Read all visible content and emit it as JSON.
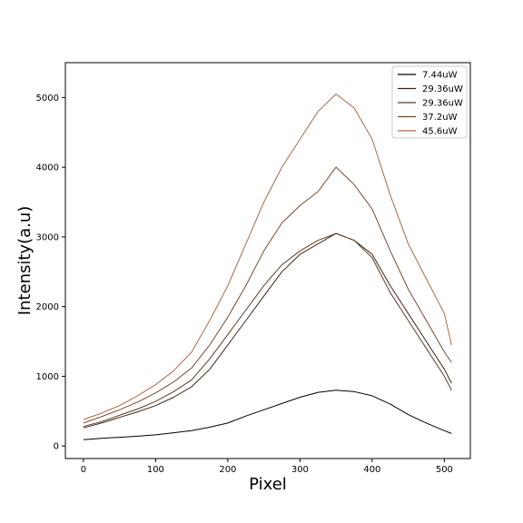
{
  "chart_data": {
    "type": "line",
    "title": "",
    "xlabel": "Pixel",
    "ylabel": "Intensity(a.u)",
    "xlim": [
      -25,
      536
    ],
    "ylim": [
      -180,
      5500
    ],
    "xticks": [
      0,
      100,
      200,
      300,
      400,
      500
    ],
    "yticks": [
      0,
      1000,
      2000,
      3000,
      4000,
      5000
    ],
    "grid": false,
    "legend_position": "top-right",
    "series": [
      {
        "name": "7.44uW",
        "color": "#000000",
        "x": [
          0,
          25,
          50,
          75,
          100,
          125,
          150,
          175,
          200,
          225,
          250,
          275,
          300,
          325,
          350,
          375,
          400,
          425,
          450,
          475,
          500,
          510
        ],
        "y": [
          90,
          110,
          125,
          140,
          160,
          190,
          220,
          270,
          330,
          430,
          520,
          610,
          700,
          770,
          800,
          780,
          720,
          600,
          450,
          330,
          220,
          180
        ]
      },
      {
        "name": "29.36uW",
        "color": "#3f2516",
        "x": [
          0,
          25,
          50,
          75,
          100,
          125,
          150,
          175,
          200,
          225,
          250,
          275,
          300,
          325,
          350,
          375,
          400,
          425,
          450,
          475,
          500,
          510
        ],
        "y": [
          260,
          330,
          410,
          490,
          580,
          700,
          850,
          1100,
          1450,
          1800,
          2150,
          2500,
          2750,
          2900,
          3050,
          2950,
          2750,
          2300,
          1900,
          1500,
          1100,
          900
        ]
      },
      {
        "name": "29.36uW",
        "color": "#5b3a24",
        "x": [
          0,
          25,
          50,
          75,
          100,
          125,
          150,
          175,
          200,
          225,
          250,
          275,
          300,
          325,
          350,
          375,
          400,
          425,
          450,
          475,
          500,
          510
        ],
        "y": [
          280,
          350,
          440,
          530,
          640,
          780,
          950,
          1250,
          1600,
          1950,
          2300,
          2600,
          2800,
          2950,
          3050,
          2950,
          2700,
          2200,
          1800,
          1400,
          1000,
          800
        ]
      },
      {
        "name": "37.2uW",
        "color": "#7a4a2e",
        "x": [
          0,
          25,
          50,
          75,
          100,
          125,
          150,
          175,
          200,
          225,
          250,
          275,
          300,
          325,
          350,
          375,
          400,
          425,
          450,
          475,
          500,
          510
        ],
        "y": [
          330,
          420,
          520,
          630,
          760,
          920,
          1120,
          1450,
          1850,
          2300,
          2800,
          3200,
          3450,
          3650,
          4000,
          3750,
          3400,
          2800,
          2250,
          1800,
          1350,
          1200
        ]
      },
      {
        "name": "45.6uW",
        "color": "#a8694a",
        "x": [
          0,
          25,
          50,
          75,
          100,
          125,
          150,
          175,
          200,
          225,
          250,
          275,
          300,
          325,
          350,
          375,
          400,
          425,
          450,
          475,
          500,
          510
        ],
        "y": [
          380,
          470,
          580,
          720,
          880,
          1080,
          1350,
          1800,
          2300,
          2900,
          3500,
          4000,
          4400,
          4800,
          5050,
          4850,
          4400,
          3600,
          2900,
          2400,
          1900,
          1450
        ]
      }
    ]
  }
}
